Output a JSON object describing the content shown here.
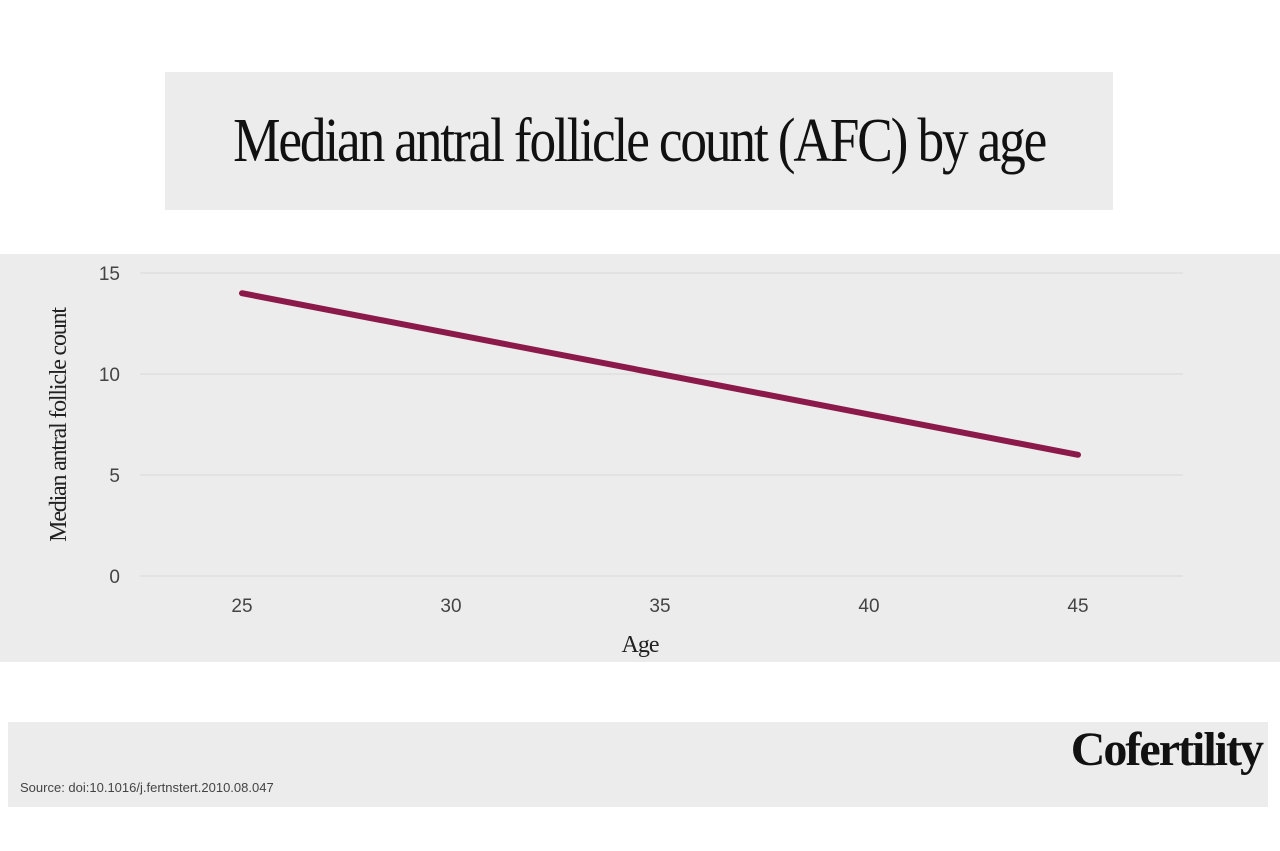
{
  "chart_data": {
    "type": "line",
    "title": "Median antral follicle count (AFC) by age",
    "xlabel": "Age",
    "ylabel": "Median antral follicle count",
    "x": [
      25,
      30,
      35,
      40,
      45
    ],
    "series": [
      {
        "values": [
          14,
          12,
          10,
          8,
          6
        ],
        "color": "#8b1a4a"
      }
    ],
    "xticks": [
      25,
      30,
      35,
      40,
      45
    ],
    "yticks": [
      0,
      5,
      10,
      15
    ],
    "xlim": [
      22.5,
      47.5
    ],
    "ylim": [
      0,
      15
    ],
    "grid": "horizontal",
    "legend": "none"
  },
  "footer": {
    "source": "Source: doi:10.1016/j.fertnstert.2010.08.047",
    "logo": "Cofertility"
  }
}
